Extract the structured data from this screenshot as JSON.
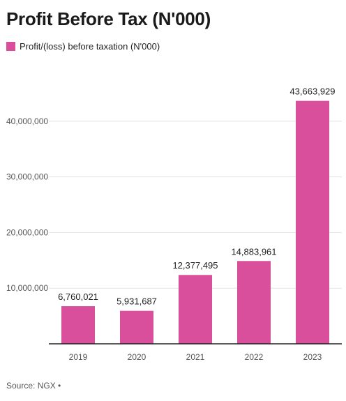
{
  "chart_data": {
    "type": "bar",
    "title": "Profit Before Tax (N'000)",
    "legend": {
      "label": "Profit/(loss) before taxation (N'000)",
      "position": "top-left"
    },
    "categories": [
      "2019",
      "2020",
      "2021",
      "2022",
      "2023"
    ],
    "series": [
      {
        "name": "Profit/(loss) before taxation (N'000)",
        "values": [
          6760021,
          5931687,
          12377495,
          14883961,
          43663929
        ]
      }
    ],
    "value_labels": [
      "6,760,021",
      "5,931,687",
      "12,377,495",
      "14,883,961",
      "43,663,929"
    ],
    "y_ticks": [
      10000000,
      20000000,
      30000000,
      40000000
    ],
    "y_tick_labels": [
      "10,000,000",
      "20,000,000",
      "30,000,000",
      "40,000,000"
    ],
    "ylim": [
      0,
      46000000
    ],
    "grid": true,
    "bar_color": "#d94f9b",
    "source": "Source: NGX • "
  }
}
